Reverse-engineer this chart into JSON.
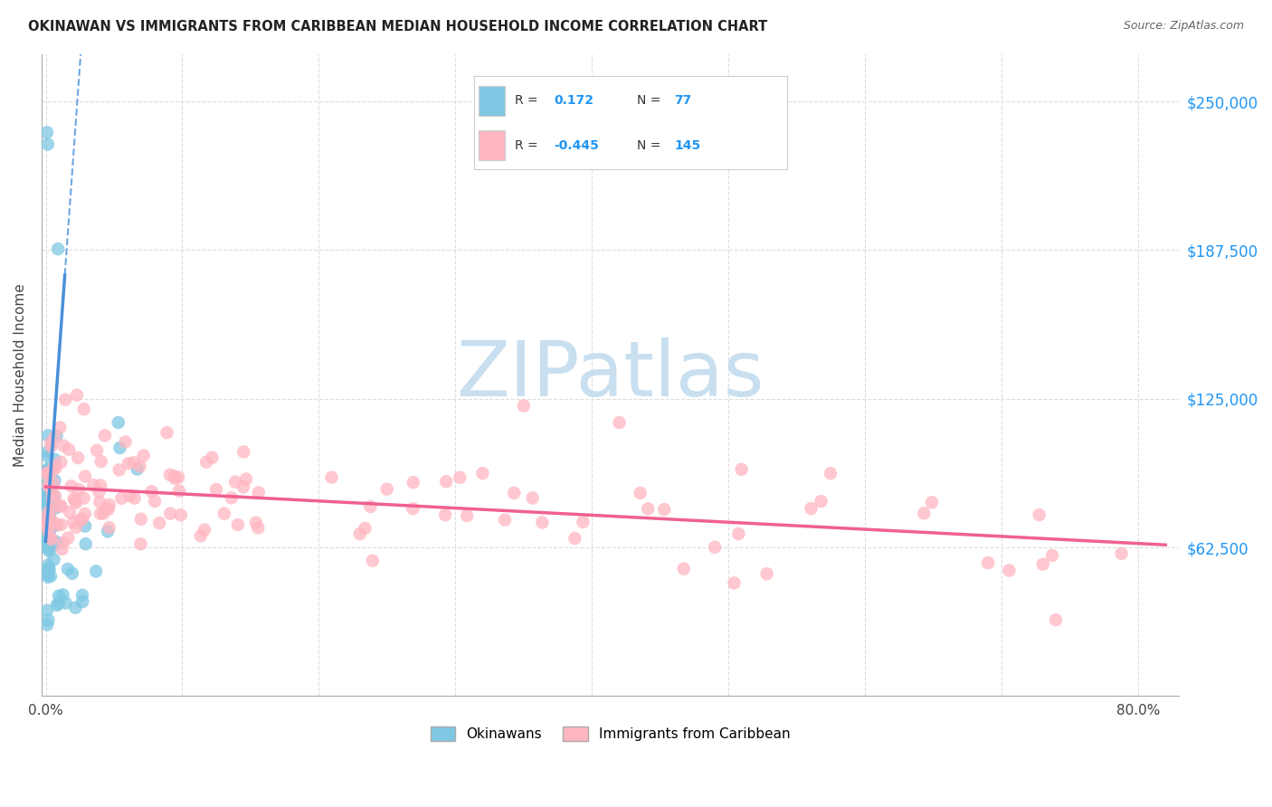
{
  "title": "OKINAWAN VS IMMIGRANTS FROM CARIBBEAN MEDIAN HOUSEHOLD INCOME CORRELATION CHART",
  "source": "Source: ZipAtlas.com",
  "ylabel": "Median Household Income",
  "ytick_labels": [
    "$62,500",
    "$125,000",
    "$187,500",
    "$250,000"
  ],
  "ytick_values": [
    62500,
    125000,
    187500,
    250000
  ],
  "ymin": 0,
  "ymax": 270000,
  "xmin": -0.003,
  "xmax": 0.83,
  "legend_label1": "Okinawans",
  "legend_label2": "Immigrants from Caribbean",
  "R1": 0.172,
  "N1": 77,
  "R2": -0.445,
  "N2": 145,
  "color_blue": "#7ec8e3",
  "color_pink": "#ffb6c1",
  "color_blue_line": "#4a90d9",
  "color_pink_line": "#f06090",
  "background_color": "#ffffff",
  "grid_color": "#dddddd"
}
